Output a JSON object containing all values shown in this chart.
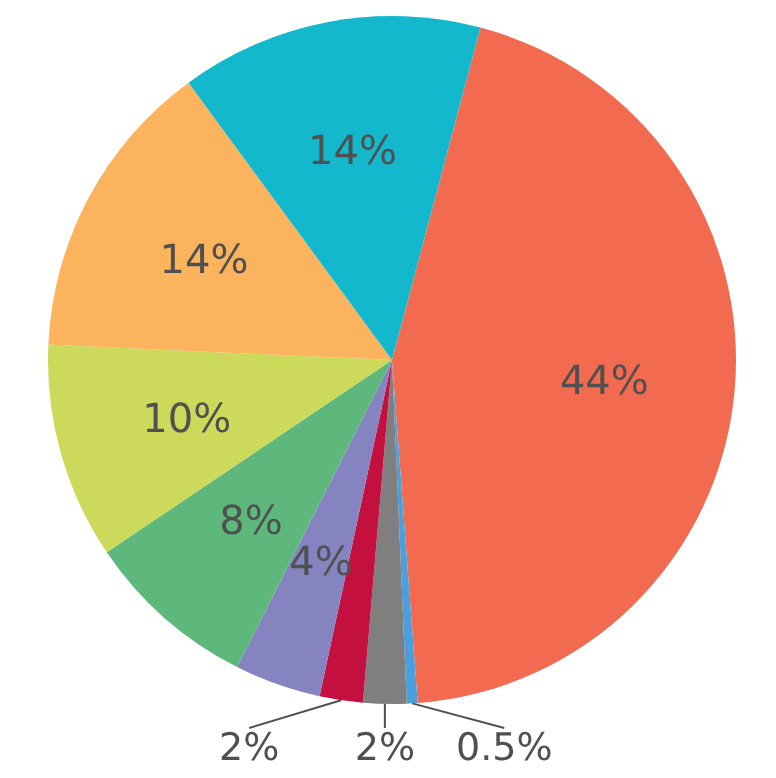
{
  "chart_data": {
    "type": "pie",
    "categories": [
      null,
      null,
      null,
      null,
      null,
      null,
      null,
      null,
      null
    ],
    "values": [
      44,
      0.5,
      2,
      2,
      4,
      8,
      10,
      14,
      14
    ],
    "colors": [
      "#f26a4f",
      "#4a9fdc",
      "#7f7f7f",
      "#c4103e",
      "#8584c0",
      "#5eb87c",
      "#cdd95a",
      "#fbb35d",
      "#13b8cd"
    ],
    "value_labels": [
      "44%",
      "0.5%",
      "2%",
      "2%",
      "4%",
      "8%",
      "10%",
      "14%",
      "14%"
    ]
  }
}
